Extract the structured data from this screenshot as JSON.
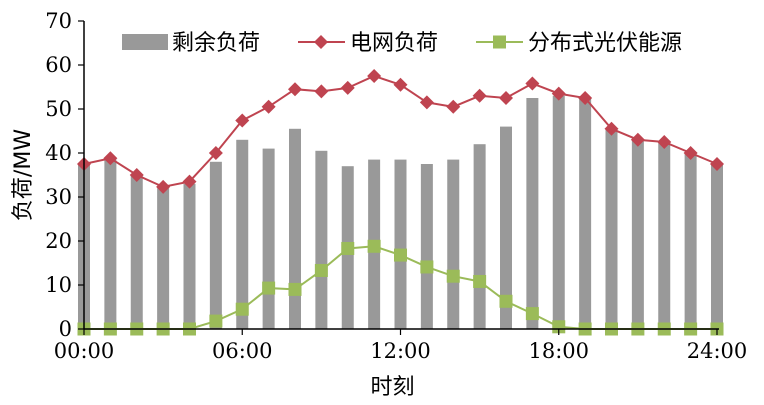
{
  "chart_data": {
    "type": "bar+line",
    "title": "",
    "xlabel": "时刻",
    "ylabel": "负荷/MW",
    "ylim": [
      0,
      70
    ],
    "xlim": [
      0,
      24
    ],
    "yticks": [
      0,
      10,
      20,
      30,
      40,
      50,
      60,
      70
    ],
    "xticks": [
      "00:00",
      "06:00",
      "12:00",
      "18:00",
      "24:00"
    ],
    "x_hours": [
      0,
      1,
      2,
      3,
      4,
      5,
      6,
      7,
      8,
      9,
      10,
      11,
      12,
      13,
      14,
      15,
      16,
      17,
      18,
      19,
      20,
      21,
      22,
      23,
      24
    ],
    "legend_position": "top",
    "grid": false,
    "series": [
      {
        "name": "剩余负荷",
        "kind": "bar",
        "color": "#999999",
        "values": [
          37.5,
          38.5,
          35,
          32,
          33,
          38,
          43,
          41,
          45.5,
          40.5,
          37,
          38.5,
          38.5,
          37.5,
          38.5,
          42,
          46,
          52.5,
          53,
          52.5,
          45.5,
          43,
          42.5,
          40,
          37.5
        ]
      },
      {
        "name": "电网负荷",
        "kind": "line",
        "marker": "diamond",
        "color": "#bf4450",
        "values": [
          37.5,
          38.8,
          35,
          32.3,
          33.5,
          40,
          47.4,
          50.5,
          54.5,
          54,
          54.8,
          57.5,
          55.5,
          51.5,
          50.5,
          53,
          52.5,
          55.8,
          53.5,
          52.5,
          45.5,
          43,
          42.5,
          40,
          37.5
        ]
      },
      {
        "name": "分布式光伏能源",
        "kind": "line",
        "marker": "square",
        "color": "#9bbb59",
        "values": [
          0,
          0,
          0,
          0,
          0,
          1.8,
          4.5,
          9.3,
          9,
          13.3,
          18.3,
          18.8,
          16.8,
          14.1,
          12,
          10.8,
          6.3,
          3.5,
          0.5,
          0,
          0,
          0,
          0,
          0,
          0
        ]
      }
    ]
  }
}
